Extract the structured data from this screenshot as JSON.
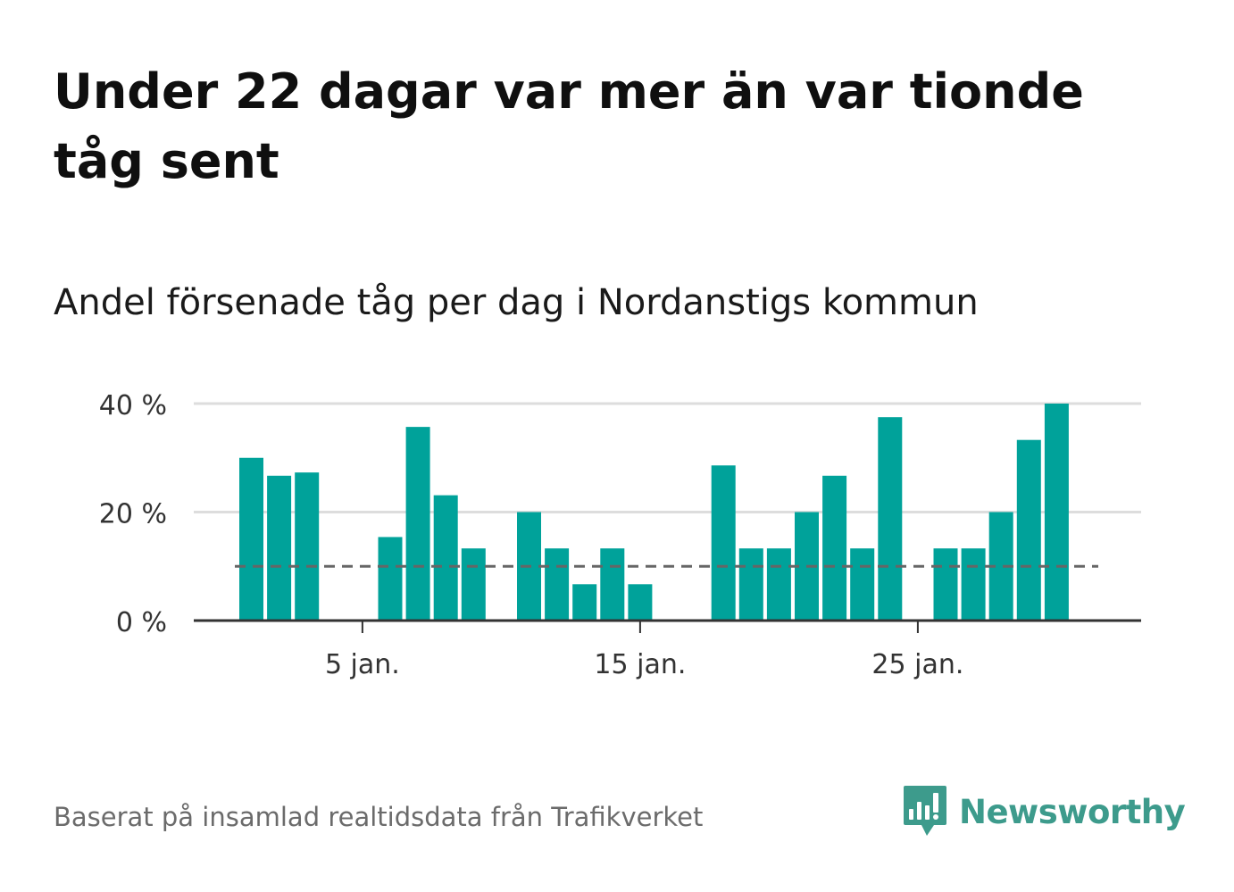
{
  "title": "Under 22 dagar var mer än var tionde tåg sent",
  "subtitle": "Andel försenade tåg per dag i Nordanstigs kommun",
  "source": "Baserat på insamlad realtidsdata från Trafikverket",
  "logo": {
    "text": "Newsworthy",
    "icon": "newsworthy-bar-chart-speech-bubble-icon"
  },
  "colors": {
    "bar": "#00a29a",
    "grid": "#dddddd",
    "axis": "#333333",
    "reference_line": "#666666",
    "brand": "#3d9b8c"
  },
  "chart_data": {
    "type": "bar",
    "x": [
      1,
      2,
      3,
      4,
      5,
      6,
      7,
      8,
      9,
      10,
      11,
      12,
      13,
      14,
      15,
      16,
      17,
      18,
      19,
      20,
      21,
      22,
      23,
      24,
      25,
      26,
      27,
      28,
      29,
      30,
      31
    ],
    "values": [
      30,
      26.7,
      27.3,
      0,
      0,
      15.4,
      35.7,
      23.1,
      13.3,
      0,
      20,
      13.3,
      6.7,
      13.3,
      6.7,
      0,
      0,
      28.6,
      13.3,
      13.3,
      20,
      26.7,
      13.3,
      37.5,
      0,
      13.3,
      13.3,
      20,
      33.3,
      40,
      0
    ],
    "ylim": [
      0,
      40
    ],
    "yticks": [
      0,
      20,
      40
    ],
    "ytick_labels": [
      "0 %",
      "20 %",
      "40 %"
    ],
    "xticks": [
      5,
      15,
      25
    ],
    "xtick_labels": [
      "5 jan.",
      "15 jan.",
      "25 jan."
    ],
    "reference_line": {
      "value": 10,
      "style": "dashed"
    },
    "grid": true,
    "xlabel": "",
    "ylabel": ""
  }
}
